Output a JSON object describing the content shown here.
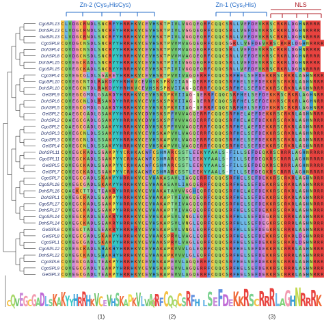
{
  "domains": [
    {
      "label": "Zn-2 (Cys₃HisCys)",
      "color": "#2a6fc9"
    },
    {
      "label": "Zn-1 (Cys₂His)",
      "color": "#2a6fc9"
    },
    {
      "label": "NLS",
      "color": "#b0202a"
    }
  ],
  "rows": [
    {
      "label": "CgoSPL13",
      "seq": "CLVDGCRNDLSNCRFYHRRHKVCEVHSKTPIVLVGGQEQRFCQQCSRLLVEFDEVKRSCRKRLDGHNRRRR"
    },
    {
      "label": "DohSPL13",
      "seq": "CLVDGCRNDLSNCRFYHRRHKVCEVHSKTPIVLVGGQEQRFCQQCSRLLVEFDEVKRSCRKRLDGHNRRRR"
    },
    {
      "label": "GelSPL13",
      "seq": "CLVDGCRNDLSNCRFYHRRHKVCEVHSKTPIVLVGGQEQRFCQQCSRLLVEFDEVKRSCRKRLDGHNRRRR"
    },
    {
      "label": "CgoSPL8",
      "seq": "CQVDGCNSDLSNCRYYHRRHKVCEVHSKTPVVMVAGQEQRFCQQCSGRLLVEFDEVKRSCRKRLDGHNRRRR"
    },
    {
      "label": "DohSPL4",
      "seq": "CQVDGCNSDLSNCRYYHRRHKVCEVHSKTPVVMVAGQEQRFCQQCSRLLVEFDEVKRSCRKRLDGHNRRRR"
    },
    {
      "label": "DohSPL8",
      "seq": "CQVDGCNSDLSNCRYYHRRHKVCEVHSKTPVVMVAGQEQRFCQQCSRLLVEFDEVKRSCRKRLDGHNRRRR"
    },
    {
      "label": "DohSPL15",
      "seq": "CQVEGCKADLSNCRYYHRRHKVCEVHSKTPIVIVGGQEQRFCQQCSRLLVEFDEVKRSCRKRLDGHNRRRR"
    },
    {
      "label": "CgoSPL15",
      "seq": "CQVEGCKADLSNCRYYHRRHKVCEVHSKTPIVIVGGQEQRFCQQCSRLLVEFDEVKRSCRKRLDGHNRRRR"
    },
    {
      "label": "CgoSPL4",
      "seq": "CQVEGCGLDLSGAKEYHRRHKVCEVHSKTPVVIVAGQERRFCQQCSRFHELSEFDEKKRSCRKRLAGHNRRRR"
    },
    {
      "label": "CgoSPL10",
      "seq": "CQVEGCNTDLRAKDYYHRHKVCEVHSKSPKVIIAG-QERRFCQQCSRFHELSEFDEKKRSCRKRLAGHNRRRR"
    },
    {
      "label": "DohSPL10",
      "seq": "CQVEGCNTDLRAKDYYHRHKVCEVHSKSPKVIIAG-QERRFCQQCSRFHELSEFDEKKRSCRKRLAGHNRRRR"
    },
    {
      "label": "GelSPL9",
      "seq": "CQVEGCGMDLGSAKDYHRRHKVCEVHSKSPKVIIAG-QERRFCQQCSRFHELSEFDEKKRSCRKRLAGHNRRRR"
    },
    {
      "label": "DohSPL6",
      "seq": "CQVEGCNLDLRSAKDYHRRHKVCEVHSKSPKVIIAG-QERRFCQQCSRFHELSEFDEKKRSCRKRLAGHNRRRR"
    },
    {
      "label": "DohSPL5",
      "seq": "CQVEGCGMDLGSAKDYHRRHKVCEVHSKSPKVIIAG-QERRFCQQCSRFHELSEFDEKKRSCRKRLAGHNRRRR"
    },
    {
      "label": "GelSPL2",
      "seq": "CQAEGCGADLGSAKYYHRRHKVCDVHSKSPFVVVAGQERRFCQQCSRFHELAEFDEKKRSCRKRLAGHNRRRR"
    },
    {
      "label": "DohSPL2",
      "seq": "CQAEGCGADLGSAKYYHRRHKVCDVHSKSPFVVVAGQERRFCQQCSRFHELAEFDEKKRSCRKRLAGHNRRRR"
    },
    {
      "label": "CgoSPL2",
      "seq": "CQAEGCGADLGSAKYYHRRHKVCDVHSKSPFVVVAGQERRFCQQCSRFHELAEFDEKKRSCRKRLAGHNRRRR"
    },
    {
      "label": "DohSPL3",
      "seq": "CQVEGCNLDLSSAKYYHRRHKVCEVHSKAPVVLVAGQERRFCQQCSRFHELSEFDEKKRSCRKRLAGHNRRRR"
    },
    {
      "label": "CgoSPL3",
      "seq": "CQVEGCNLDLSSAKYYHRRHKVCEVHSKAPVVLVAGQERRFCQQCSRFHELSEFDEKKRSCRKRLAGHNRRRR"
    },
    {
      "label": "GelSPL4",
      "seq": "CQVEGCNLDLSSAKYYHRRHKVCEVHSKAPVVLVAGQERRFCQQCSRFHELSEFDEKKRSCRKRLAGHNRRRR"
    },
    {
      "label": "DohSPL11",
      "seq": "CQVEGCKADLSGAKPYYCRHKACWFCSHMARCSSTLEEKYYAALS-FILLSEFDEQKRSCRRRLAGHNRRRR"
    },
    {
      "label": "CgoSPL11",
      "seq": "CQVEGCKADLSGAKPYYCRHKACWFCSHMARCSSTLEEKYYAALS-FILLSEFDEQKRSCRRRLAGHNRRRR"
    },
    {
      "label": "GelSPL5",
      "seq": "CQVEGCKADLSGAKPYYCRHKACWFCSHMARCSSTLEEKYYAALS-FILLSEFDEQKRSCRRRLAGHNRRRR"
    },
    {
      "label": "GelSPL7",
      "seq": "CQVEGCKADLSGAKPYYCRHKACWFCSHMARCSSTLEEKYYAALS-FILLSEFDEQKRSCRRRLAGHNRRRR"
    },
    {
      "label": "CgoSPL7",
      "seq": "CQVEGCGADLSKAKYYHRRHKVCEVHAKASAVLIAGQERRFCQQCSRFHELSEFDEKKRSCRKRLAGHNRRRR"
    },
    {
      "label": "CgoSPL16",
      "seq": "CQVEGCGADLSKAKYYHRRHKVCEVHAKASAVLIAGQERRFCQQCSRFHELSEFDEKKRSCRKRLAGHNRRRR"
    },
    {
      "label": "DohSPL16",
      "seq": "CQAEKCTTDLTEAKRYHRRHKVCEVHAKATAVVVGGHEQRFCQQCSRFHELAEFDEKKRSCRKRLAGHNRRRR"
    },
    {
      "label": "DohSPL1",
      "seq": "CQVEGCKADLSGAKPYHRRHKVCEVHAKAPTVIVAGQEQRFCQQCSRFHELSEFDEKKRSCRKRLAGHNRRRR"
    },
    {
      "label": "CgoSPL17",
      "seq": "CQVEGCKADLSGAKPYHRRHKVCEVHAKAPTVIVAGQEQRFCQQCSRFHELSEFDEKKRSCRKRLAGHNRRRR"
    },
    {
      "label": "DohSPL17",
      "seq": "CQVEGCKADLSGAKPYHRRHKVCEVHAKAPTVIVAGQEQRFCQQCSRFHELSEFDEKKRSCRKRLAGHNRRRR"
    },
    {
      "label": "CgoSPL14",
      "seq": "CQVEGCKADLSEAKRYHRRHKVCEVHSKAPSVLVNGLEQRFCQQCSRFHLLSEFDEGKRSCRRRLAGHNRRRR"
    },
    {
      "label": "DohSPL14",
      "seq": "CQVEGCKADLSEAKRYHRRHKVCEVHSKAPSVLVNGLEQRFCQQCSRFHLLSEFDEGKRSCRRRLAGHNRRRR"
    },
    {
      "label": "GelSPL6",
      "seq": "CQVEGCTADLSEAKRYHRRHRVCEVHSKAPSVLVNGLEQRFCQQCSRFHLLSEFDEGKRSCRRRLAGHNRRRR"
    },
    {
      "label": "GelSPL8",
      "seq": "CQVEGCGADLSKAKYYHRRHKVCEVHAKSPRVLVAGLEQRFCQQCSRFHELSEFDEKKRSCRKRLDGHNRRRR"
    },
    {
      "label": "CgoSPL1",
      "seq": "CQVEGCGADLSKAKYYHRRHKVCEVHAKSPRVLVAGLEQRFCQQCSRFHELSEFDEKKRSCRKRLDGHNRRRR"
    },
    {
      "label": "CgoSPL12",
      "seq": "CQVEGCKADLSHAKHYHRRHKVCEVHAKAPKVVVLGLEQRFCQQCSRFHELSEFDEKKRSCRRRLAGHNRRRR"
    },
    {
      "label": "DohSPL12",
      "seq": "CQVEGCKADLSHAKHYHRRHKVCEVHAKAPKVVVLGLEQRFCQQCSRFHELSEFDEKKRSCRRRLAGHNRRRR"
    },
    {
      "label": "CgoSPL6",
      "seq": "CQVEGCGADLTEAKPYHRRHKVCEVHSKAPEVVLAGQERRFCQQCSRFHELSEFDEKKRSCRRRLAGHNRRRR"
    },
    {
      "label": "CgoSPL9",
      "seq": "CQVEGCGADLTEAKPYHRRHKVCEVHSKAPEVVLAGQERRFCQQCSRFHELSEFDEKKRSCRRRLAGHNRRRR"
    },
    {
      "label": "GelSPL3",
      "seq": "CQVEGCGADLTEAKPYHRRHKVCEVHSKAPEVVLAGQERRFCQQCSRFHELSEFDEKKRSCRRRLAGHNRRRR"
    }
  ],
  "logos": [
    {
      "caption": "(1)",
      "text": "CQVEGCGADLSKAKYYHRRHKVCEVHSKAPKVLVAG"
    },
    {
      "caption": "(2)",
      "text": "QRFCQQCSRFH"
    },
    {
      "caption": "(3)",
      "text": "LSEFDEKKRSCRRRLAGHNRRRK"
    }
  ],
  "residue_colors": {
    "C": "#f4c145",
    "H": "#3aa0d8",
    "K": "#ef6a3a",
    "R": "#e8433f",
    "D": "#c06ad6",
    "E": "#c98ad9",
    "G": "#f29bb0",
    "P": "#f2e24b",
    "A": "#7fd37a",
    "V": "#6ec26a",
    "L": "#6fb8e8",
    "I": "#63b0de",
    "M": "#86c4ea",
    "F": "#5e8fe0",
    "Y": "#35c6c2",
    "W": "#9d7fe0",
    "S": "#7ad18f",
    "T": "#96dd9f",
    "N": "#c2d84c",
    "Q": "#a8d86a",
    "-": "#ffffff"
  }
}
